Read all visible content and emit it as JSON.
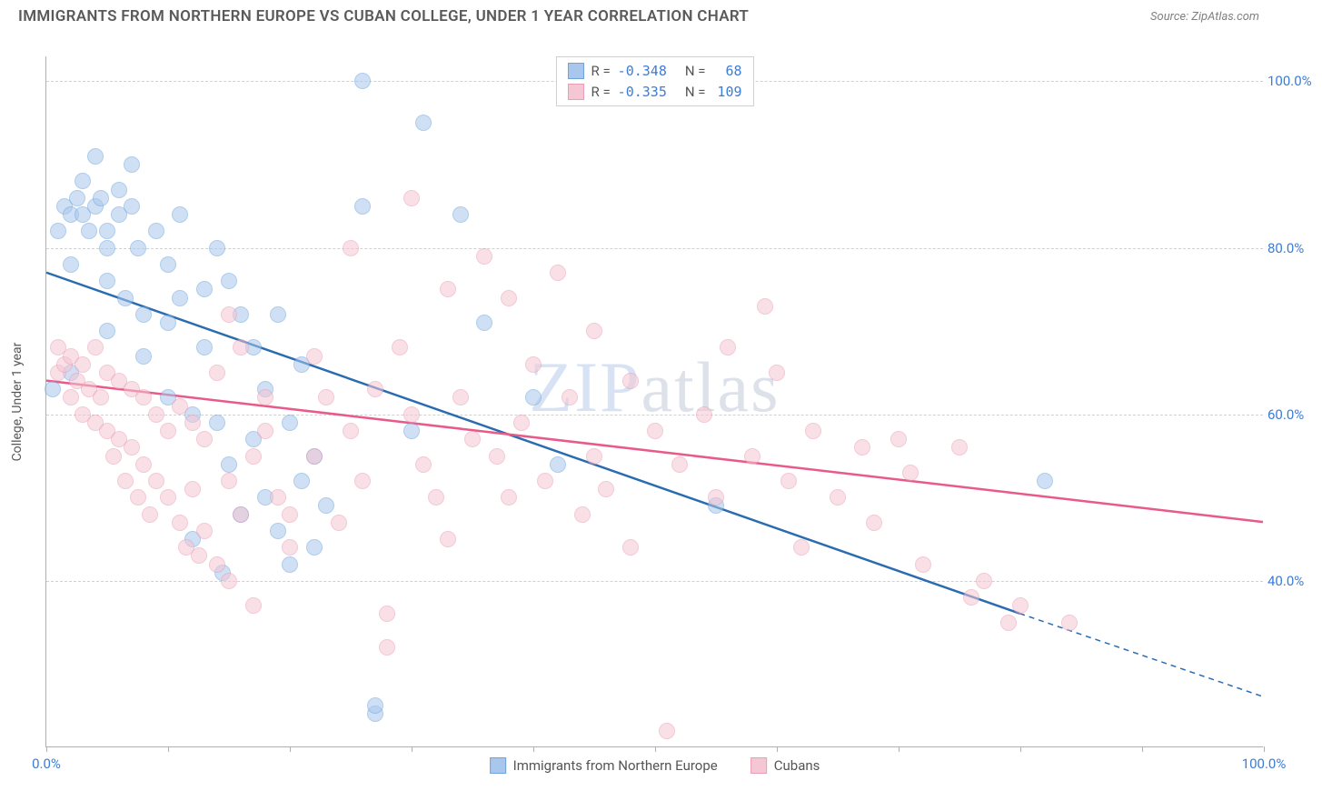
{
  "header": {
    "title": "IMMIGRANTS FROM NORTHERN EUROPE VS CUBAN COLLEGE, UNDER 1 YEAR CORRELATION CHART",
    "source": "Source: ZipAtlas.com"
  },
  "watermark": {
    "part1": "ZIP",
    "part2": "atlas"
  },
  "chart": {
    "type": "scatter",
    "y_axis_label": "College, Under 1 year",
    "xlim": [
      0,
      100
    ],
    "ylim": [
      20,
      103
    ],
    "x_ticks": [
      0,
      10,
      20,
      30,
      40,
      50,
      60,
      70,
      80,
      90,
      100
    ],
    "x_tick_labels": {
      "0": "0.0%",
      "100": "100.0%"
    },
    "y_ticks": [
      40,
      60,
      80,
      100
    ],
    "y_tick_labels": {
      "40": "40.0%",
      "60": "60.0%",
      "80": "80.0%",
      "100": "100.0%"
    },
    "background_color": "#ffffff",
    "grid_color": "#d0d0d0",
    "axis_color": "#b0b0b0",
    "tick_label_color": "#3b7dd8",
    "point_radius": 9,
    "point_opacity": 0.55,
    "series": [
      {
        "name": "Immigrants from Northern Europe",
        "fill_color": "#a9c7ec",
        "stroke_color": "#6fa3dd",
        "line_color": "#2b6cb0",
        "line_width": 2.5,
        "R": "-0.348",
        "N": "68",
        "trend_start": [
          0,
          77
        ],
        "trend_end": [
          80,
          36
        ],
        "dashed_ext_end": [
          100,
          26
        ],
        "points": [
          [
            1,
            82
          ],
          [
            1.5,
            85
          ],
          [
            2,
            84
          ],
          [
            2,
            78
          ],
          [
            2.5,
            86
          ],
          [
            2,
            65
          ],
          [
            0.5,
            63
          ],
          [
            3,
            84
          ],
          [
            3,
            88
          ],
          [
            3.5,
            82
          ],
          [
            4,
            91
          ],
          [
            4,
            85
          ],
          [
            4.5,
            86
          ],
          [
            5,
            82
          ],
          [
            5,
            76
          ],
          [
            5,
            80
          ],
          [
            5,
            70
          ],
          [
            6,
            87
          ],
          [
            6,
            84
          ],
          [
            6.5,
            74
          ],
          [
            7,
            90
          ],
          [
            7,
            85
          ],
          [
            7.5,
            80
          ],
          [
            8,
            72
          ],
          [
            8,
            67
          ],
          [
            9,
            82
          ],
          [
            10,
            78
          ],
          [
            10,
            71
          ],
          [
            10,
            62
          ],
          [
            11,
            84
          ],
          [
            11,
            74
          ],
          [
            12,
            60
          ],
          [
            12,
            45
          ],
          [
            13,
            75
          ],
          [
            13,
            68
          ],
          [
            14,
            80
          ],
          [
            14,
            59
          ],
          [
            14.5,
            41
          ],
          [
            15,
            76
          ],
          [
            15,
            54
          ],
          [
            16,
            72
          ],
          [
            16,
            48
          ],
          [
            17,
            68
          ],
          [
            17,
            57
          ],
          [
            18,
            63
          ],
          [
            18,
            50
          ],
          [
            19,
            72
          ],
          [
            19,
            46
          ],
          [
            20,
            59
          ],
          [
            20,
            42
          ],
          [
            21,
            66
          ],
          [
            21,
            52
          ],
          [
            22,
            44
          ],
          [
            22,
            55
          ],
          [
            23,
            49
          ],
          [
            26,
            100
          ],
          [
            26,
            85
          ],
          [
            27,
            24
          ],
          [
            27,
            25
          ],
          [
            30,
            58
          ],
          [
            31,
            95
          ],
          [
            34,
            84
          ],
          [
            36,
            71
          ],
          [
            40,
            62
          ],
          [
            42,
            54
          ],
          [
            55,
            49
          ],
          [
            82,
            52
          ]
        ]
      },
      {
        "name": "Cubans",
        "fill_color": "#f5c6d3",
        "stroke_color": "#ea9eb5",
        "line_color": "#e85a8a",
        "line_width": 2.5,
        "R": "-0.335",
        "N": "109",
        "trend_start": [
          0,
          64
        ],
        "trend_end": [
          100,
          47
        ],
        "points": [
          [
            1,
            68
          ],
          [
            1,
            65
          ],
          [
            1.5,
            66
          ],
          [
            2,
            67
          ],
          [
            2,
            62
          ],
          [
            2.5,
            64
          ],
          [
            3,
            66
          ],
          [
            3,
            60
          ],
          [
            3.5,
            63
          ],
          [
            4,
            68
          ],
          [
            4,
            59
          ],
          [
            4.5,
            62
          ],
          [
            5,
            65
          ],
          [
            5,
            58
          ],
          [
            5.5,
            55
          ],
          [
            6,
            64
          ],
          [
            6,
            57
          ],
          [
            6.5,
            52
          ],
          [
            7,
            63
          ],
          [
            7,
            56
          ],
          [
            7.5,
            50
          ],
          [
            8,
            62
          ],
          [
            8,
            54
          ],
          [
            8.5,
            48
          ],
          [
            9,
            60
          ],
          [
            9,
            52
          ],
          [
            10,
            58
          ],
          [
            10,
            50
          ],
          [
            11,
            61
          ],
          [
            11,
            47
          ],
          [
            11.5,
            44
          ],
          [
            12,
            59
          ],
          [
            12,
            51
          ],
          [
            12.5,
            43
          ],
          [
            13,
            57
          ],
          [
            13,
            46
          ],
          [
            14,
            65
          ],
          [
            14,
            42
          ],
          [
            15,
            72
          ],
          [
            15,
            52
          ],
          [
            15,
            40
          ],
          [
            16,
            68
          ],
          [
            16,
            48
          ],
          [
            17,
            55
          ],
          [
            17,
            37
          ],
          [
            18,
            62
          ],
          [
            18,
            58
          ],
          [
            19,
            50
          ],
          [
            20,
            48
          ],
          [
            20,
            44
          ],
          [
            22,
            67
          ],
          [
            22,
            55
          ],
          [
            23,
            62
          ],
          [
            24,
            47
          ],
          [
            25,
            80
          ],
          [
            25,
            58
          ],
          [
            26,
            52
          ],
          [
            27,
            63
          ],
          [
            28,
            32
          ],
          [
            28,
            36
          ],
          [
            29,
            68
          ],
          [
            30,
            86
          ],
          [
            30,
            60
          ],
          [
            31,
            54
          ],
          [
            32,
            50
          ],
          [
            33,
            75
          ],
          [
            33,
            45
          ],
          [
            34,
            62
          ],
          [
            35,
            57
          ],
          [
            36,
            79
          ],
          [
            37,
            55
          ],
          [
            38,
            74
          ],
          [
            38,
            50
          ],
          [
            39,
            59
          ],
          [
            40,
            66
          ],
          [
            41,
            52
          ],
          [
            42,
            77
          ],
          [
            43,
            62
          ],
          [
            44,
            48
          ],
          [
            45,
            70
          ],
          [
            45,
            55
          ],
          [
            46,
            51
          ],
          [
            48,
            64
          ],
          [
            48,
            44
          ],
          [
            50,
            58
          ],
          [
            51,
            22
          ],
          [
            52,
            54
          ],
          [
            54,
            60
          ],
          [
            55,
            50
          ],
          [
            56,
            68
          ],
          [
            58,
            55
          ],
          [
            59,
            73
          ],
          [
            60,
            65
          ],
          [
            61,
            52
          ],
          [
            62,
            44
          ],
          [
            63,
            58
          ],
          [
            65,
            50
          ],
          [
            67,
            56
          ],
          [
            68,
            47
          ],
          [
            70,
            57
          ],
          [
            71,
            53
          ],
          [
            72,
            42
          ],
          [
            75,
            56
          ],
          [
            76,
            38
          ],
          [
            77,
            40
          ],
          [
            79,
            35
          ],
          [
            80,
            37
          ],
          [
            84,
            35
          ]
        ]
      }
    ],
    "legend": {
      "items": [
        {
          "label": "Immigrants from Northern Europe",
          "fill": "#a9c7ec",
          "stroke": "#6fa3dd"
        },
        {
          "label": "Cubans",
          "fill": "#f5c6d3",
          "stroke": "#ea9eb5"
        }
      ]
    }
  }
}
